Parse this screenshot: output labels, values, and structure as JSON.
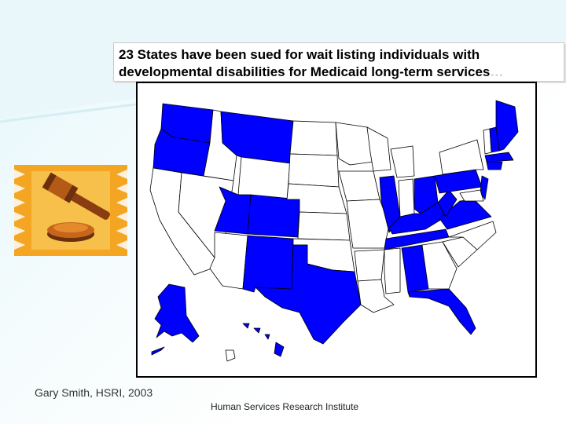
{
  "slide": {
    "title_line1": "23 States have been sued for wait listing individuals with",
    "title_line2": "developmental disabilities for Medicaid long-term services",
    "title_ellipsis": "…",
    "footer_author": "Gary Smith, HSRI, 2003",
    "footer_org": "Human Services Research Institute"
  },
  "map": {
    "highlight_color": "#0000ff",
    "base_color": "#ffffff",
    "border_color": "#000000"
  },
  "clipart": {
    "icon": "gavel-icon",
    "colors": {
      "background": "#f5a623",
      "accent": "#b85c1a",
      "dark": "#5a2a0a"
    }
  }
}
